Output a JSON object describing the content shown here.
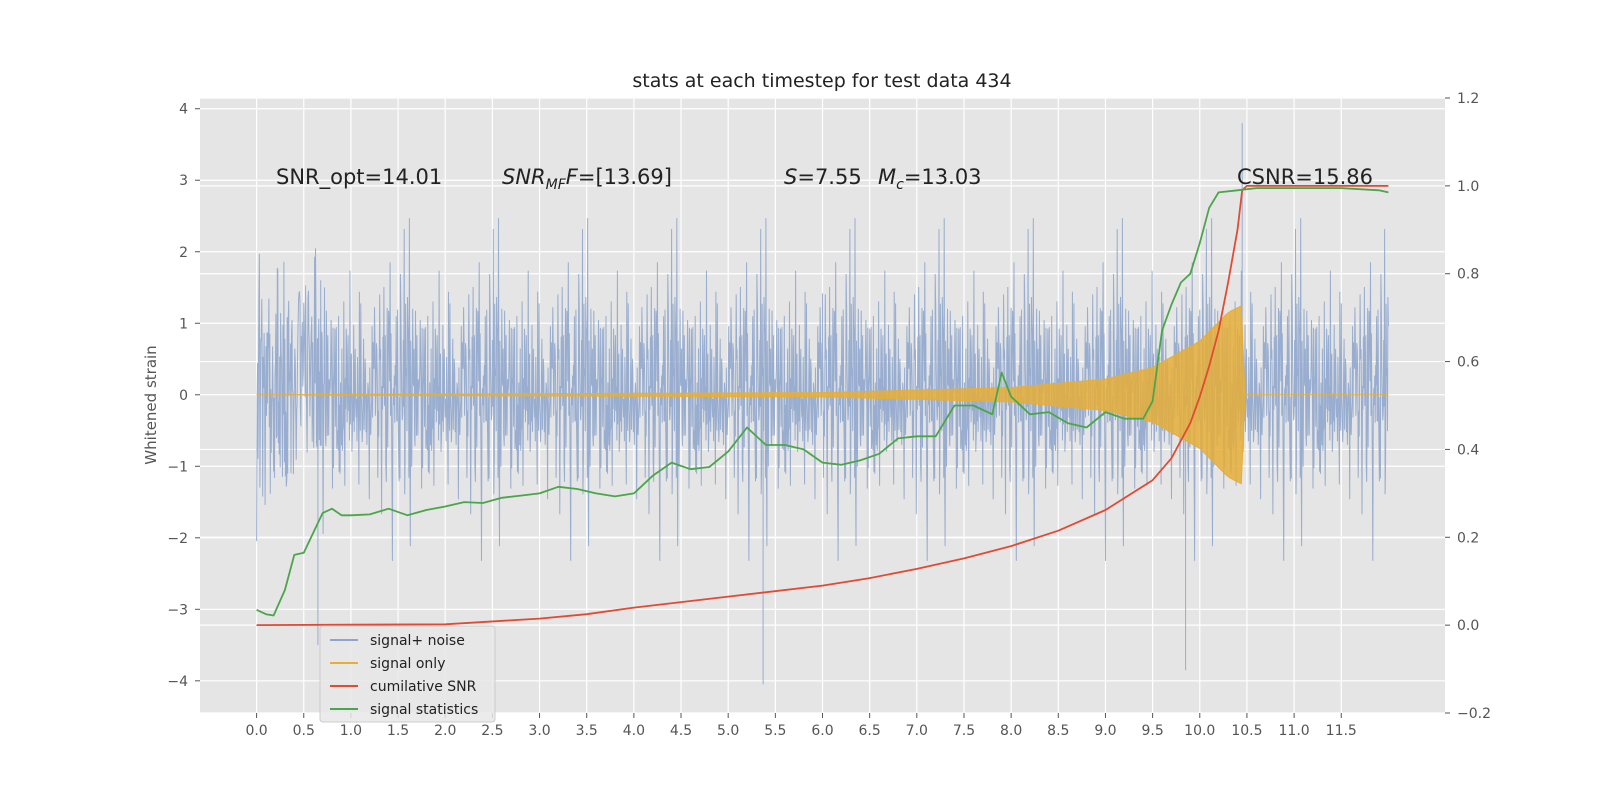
{
  "chart_data": {
    "type": "line",
    "title": "stats at each timestep for test data 434",
    "ylabel": "Whitened strain",
    "y2label": "",
    "xlim": [
      -0.6,
      12.6
    ],
    "ylim": [
      -4.45,
      4.15
    ],
    "y2lim": [
      -0.2,
      1.2
    ],
    "xticks": [
      0.0,
      0.5,
      1.0,
      1.5,
      2.0,
      2.5,
      3.0,
      3.5,
      4.0,
      4.5,
      5.0,
      5.5,
      6.0,
      6.5,
      7.0,
      7.5,
      8.0,
      8.5,
      9.0,
      9.5,
      10.0,
      10.5,
      11.0,
      11.5
    ],
    "xtick_labels": [
      "0.0",
      "0.5",
      "1.0",
      "1.5",
      "2.0",
      "2.5",
      "3.0",
      "3.5",
      "4.0",
      "4.5",
      "5.0",
      "5.5",
      "6.0",
      "6.5",
      "7.0",
      "7.5",
      "8.0",
      "8.5",
      "9.0",
      "9.5",
      "10.0",
      "10.5",
      "11.0",
      "11.5"
    ],
    "yticks": [
      -4,
      -3,
      -2,
      -1,
      0,
      1,
      2,
      3,
      4
    ],
    "ytick_labels": [
      "−4",
      "−3",
      "−2",
      "−1",
      "0",
      "1",
      "2",
      "3",
      "4"
    ],
    "y2ticks": [
      -0.2,
      0.0,
      0.2,
      0.4,
      0.6,
      0.8,
      1.0,
      1.2
    ],
    "y2tick_labels": [
      "−0.2",
      "0.0",
      "0.2",
      "0.4",
      "0.6",
      "0.8",
      "1.0",
      "1.2"
    ],
    "grid": true,
    "legend_position": "lower-left",
    "annotations": {
      "snr_opt": "SNR_opt=14.01",
      "snr_mf_main": "SNR",
      "snr_mf_sub": "MF",
      "snr_mf_value": "=[13.69]",
      "s_symbol": "S",
      "s_value": "=7.55",
      "mc_main": "M",
      "mc_sub": "c",
      "mc_value": "=13.03",
      "csnr": "CSNR=15.86"
    },
    "series": [
      {
        "name": "signal+ noise",
        "axis": "left",
        "color": "#8fa6cc",
        "description_kind": "noise",
        "x_range": [
          0.0,
          12.0
        ],
        "typical_envelope": [
          -1.9,
          2.2
        ],
        "extremes": [
          [
            0.65,
            -3.5
          ],
          [
            5.37,
            -4.05
          ],
          [
            6.0,
            1.42
          ],
          [
            9.85,
            -3.85
          ],
          [
            10.45,
            3.8
          ]
        ]
      },
      {
        "name": "signal only",
        "axis": "left",
        "color": "#e5ae38",
        "description_kind": "chirp",
        "x_range": [
          0.0,
          12.0
        ],
        "peak_time": 10.45,
        "envelope": [
          [
            0.0,
            0.0
          ],
          [
            6.0,
            0.03
          ],
          [
            8.0,
            0.1
          ],
          [
            9.0,
            0.22
          ],
          [
            9.5,
            0.38
          ],
          [
            10.0,
            0.75
          ],
          [
            10.3,
            1.15
          ],
          [
            10.45,
            1.25
          ],
          [
            10.48,
            0.0
          ],
          [
            12.0,
            0.0
          ]
        ]
      },
      {
        "name": "cumilative SNR",
        "axis": "right",
        "color": "#e24a33",
        "x": [
          0.0,
          1.0,
          2.0,
          3.0,
          3.5,
          4.0,
          5.0,
          6.0,
          6.5,
          7.0,
          7.5,
          8.0,
          8.5,
          9.0,
          9.5,
          9.7,
          9.9,
          10.0,
          10.1,
          10.2,
          10.3,
          10.4,
          10.45,
          10.5,
          12.0
        ],
        "values": [
          0.0,
          0.001,
          0.002,
          0.015,
          0.025,
          0.04,
          0.065,
          0.09,
          0.107,
          0.128,
          0.152,
          0.18,
          0.215,
          0.262,
          0.33,
          0.38,
          0.46,
          0.52,
          0.59,
          0.67,
          0.78,
          0.9,
          0.99,
          1.0,
          1.0
        ]
      },
      {
        "name": "signal statistics",
        "axis": "right",
        "color": "#348abd",
        "line_color": "#4ba54b",
        "x": [
          0.0,
          0.1,
          0.18,
          0.3,
          0.4,
          0.5,
          0.6,
          0.7,
          0.8,
          0.9,
          1.0,
          1.2,
          1.4,
          1.6,
          1.8,
          2.0,
          2.2,
          2.4,
          2.6,
          2.8,
          3.0,
          3.2,
          3.4,
          3.6,
          3.8,
          4.0,
          4.2,
          4.4,
          4.6,
          4.8,
          5.0,
          5.2,
          5.4,
          5.6,
          5.8,
          6.0,
          6.2,
          6.4,
          6.6,
          6.8,
          7.0,
          7.2,
          7.4,
          7.6,
          7.8,
          7.9,
          8.0,
          8.2,
          8.4,
          8.6,
          8.8,
          9.0,
          9.2,
          9.4,
          9.5,
          9.6,
          9.7,
          9.8,
          9.9,
          10.0,
          10.1,
          10.2,
          10.4,
          10.6,
          11.0,
          11.5,
          11.9,
          12.0
        ],
        "values": [
          0.035,
          0.025,
          0.022,
          0.08,
          0.16,
          0.165,
          0.21,
          0.255,
          0.265,
          0.25,
          0.25,
          0.252,
          0.265,
          0.25,
          0.262,
          0.27,
          0.28,
          0.278,
          0.29,
          0.295,
          0.3,
          0.315,
          0.31,
          0.3,
          0.293,
          0.3,
          0.34,
          0.37,
          0.355,
          0.36,
          0.395,
          0.45,
          0.41,
          0.41,
          0.4,
          0.37,
          0.365,
          0.375,
          0.39,
          0.425,
          0.43,
          0.43,
          0.5,
          0.5,
          0.48,
          0.575,
          0.52,
          0.48,
          0.485,
          0.46,
          0.45,
          0.485,
          0.47,
          0.47,
          0.51,
          0.67,
          0.73,
          0.78,
          0.8,
          0.87,
          0.95,
          0.985,
          0.99,
          0.995,
          0.995,
          0.995,
          0.99,
          0.985
        ]
      }
    ]
  }
}
